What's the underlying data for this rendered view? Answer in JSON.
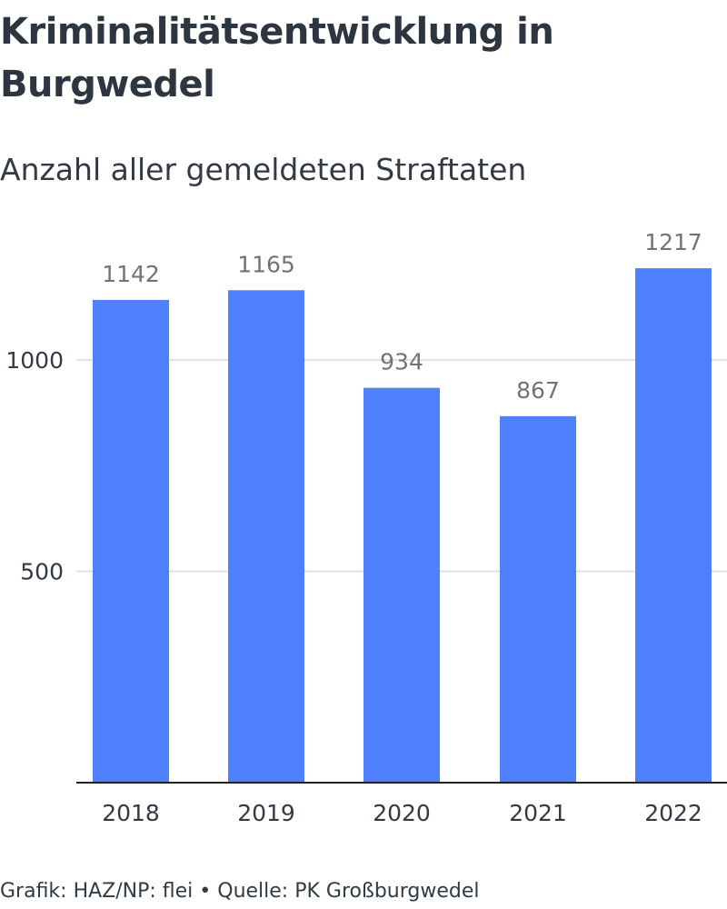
{
  "header": {
    "title": "Kriminalitätsentwicklung in Burgwedel",
    "subtitle": "Anzahl aller gemeldeten Straftaten"
  },
  "footer": {
    "source": "Grafik: HAZ/NP: flei • Quelle: PK Großburgwedel"
  },
  "colors": {
    "bar": "#4e7ffc",
    "grid": "#e2e2e2",
    "baseline": "#222222",
    "value_label": "#737373",
    "axis_label": "#333a45"
  },
  "chart_data": {
    "type": "bar",
    "title": "Kriminalitätsentwicklung in Burgwedel",
    "subtitle": "Anzahl aller gemeldeten Straftaten",
    "categories": [
      "2018",
      "2019",
      "2020",
      "2021",
      "2022"
    ],
    "values": [
      1142,
      1165,
      934,
      867,
      1217
    ],
    "data_labels": [
      "1142",
      "1165",
      "934",
      "867",
      "1217"
    ],
    "yticks": [
      500,
      1000
    ],
    "ytick_labels": [
      "500",
      "1000"
    ],
    "ylim": [
      0,
      1217
    ],
    "xlabel": "",
    "ylabel": "",
    "grid": true,
    "legend": "none"
  }
}
